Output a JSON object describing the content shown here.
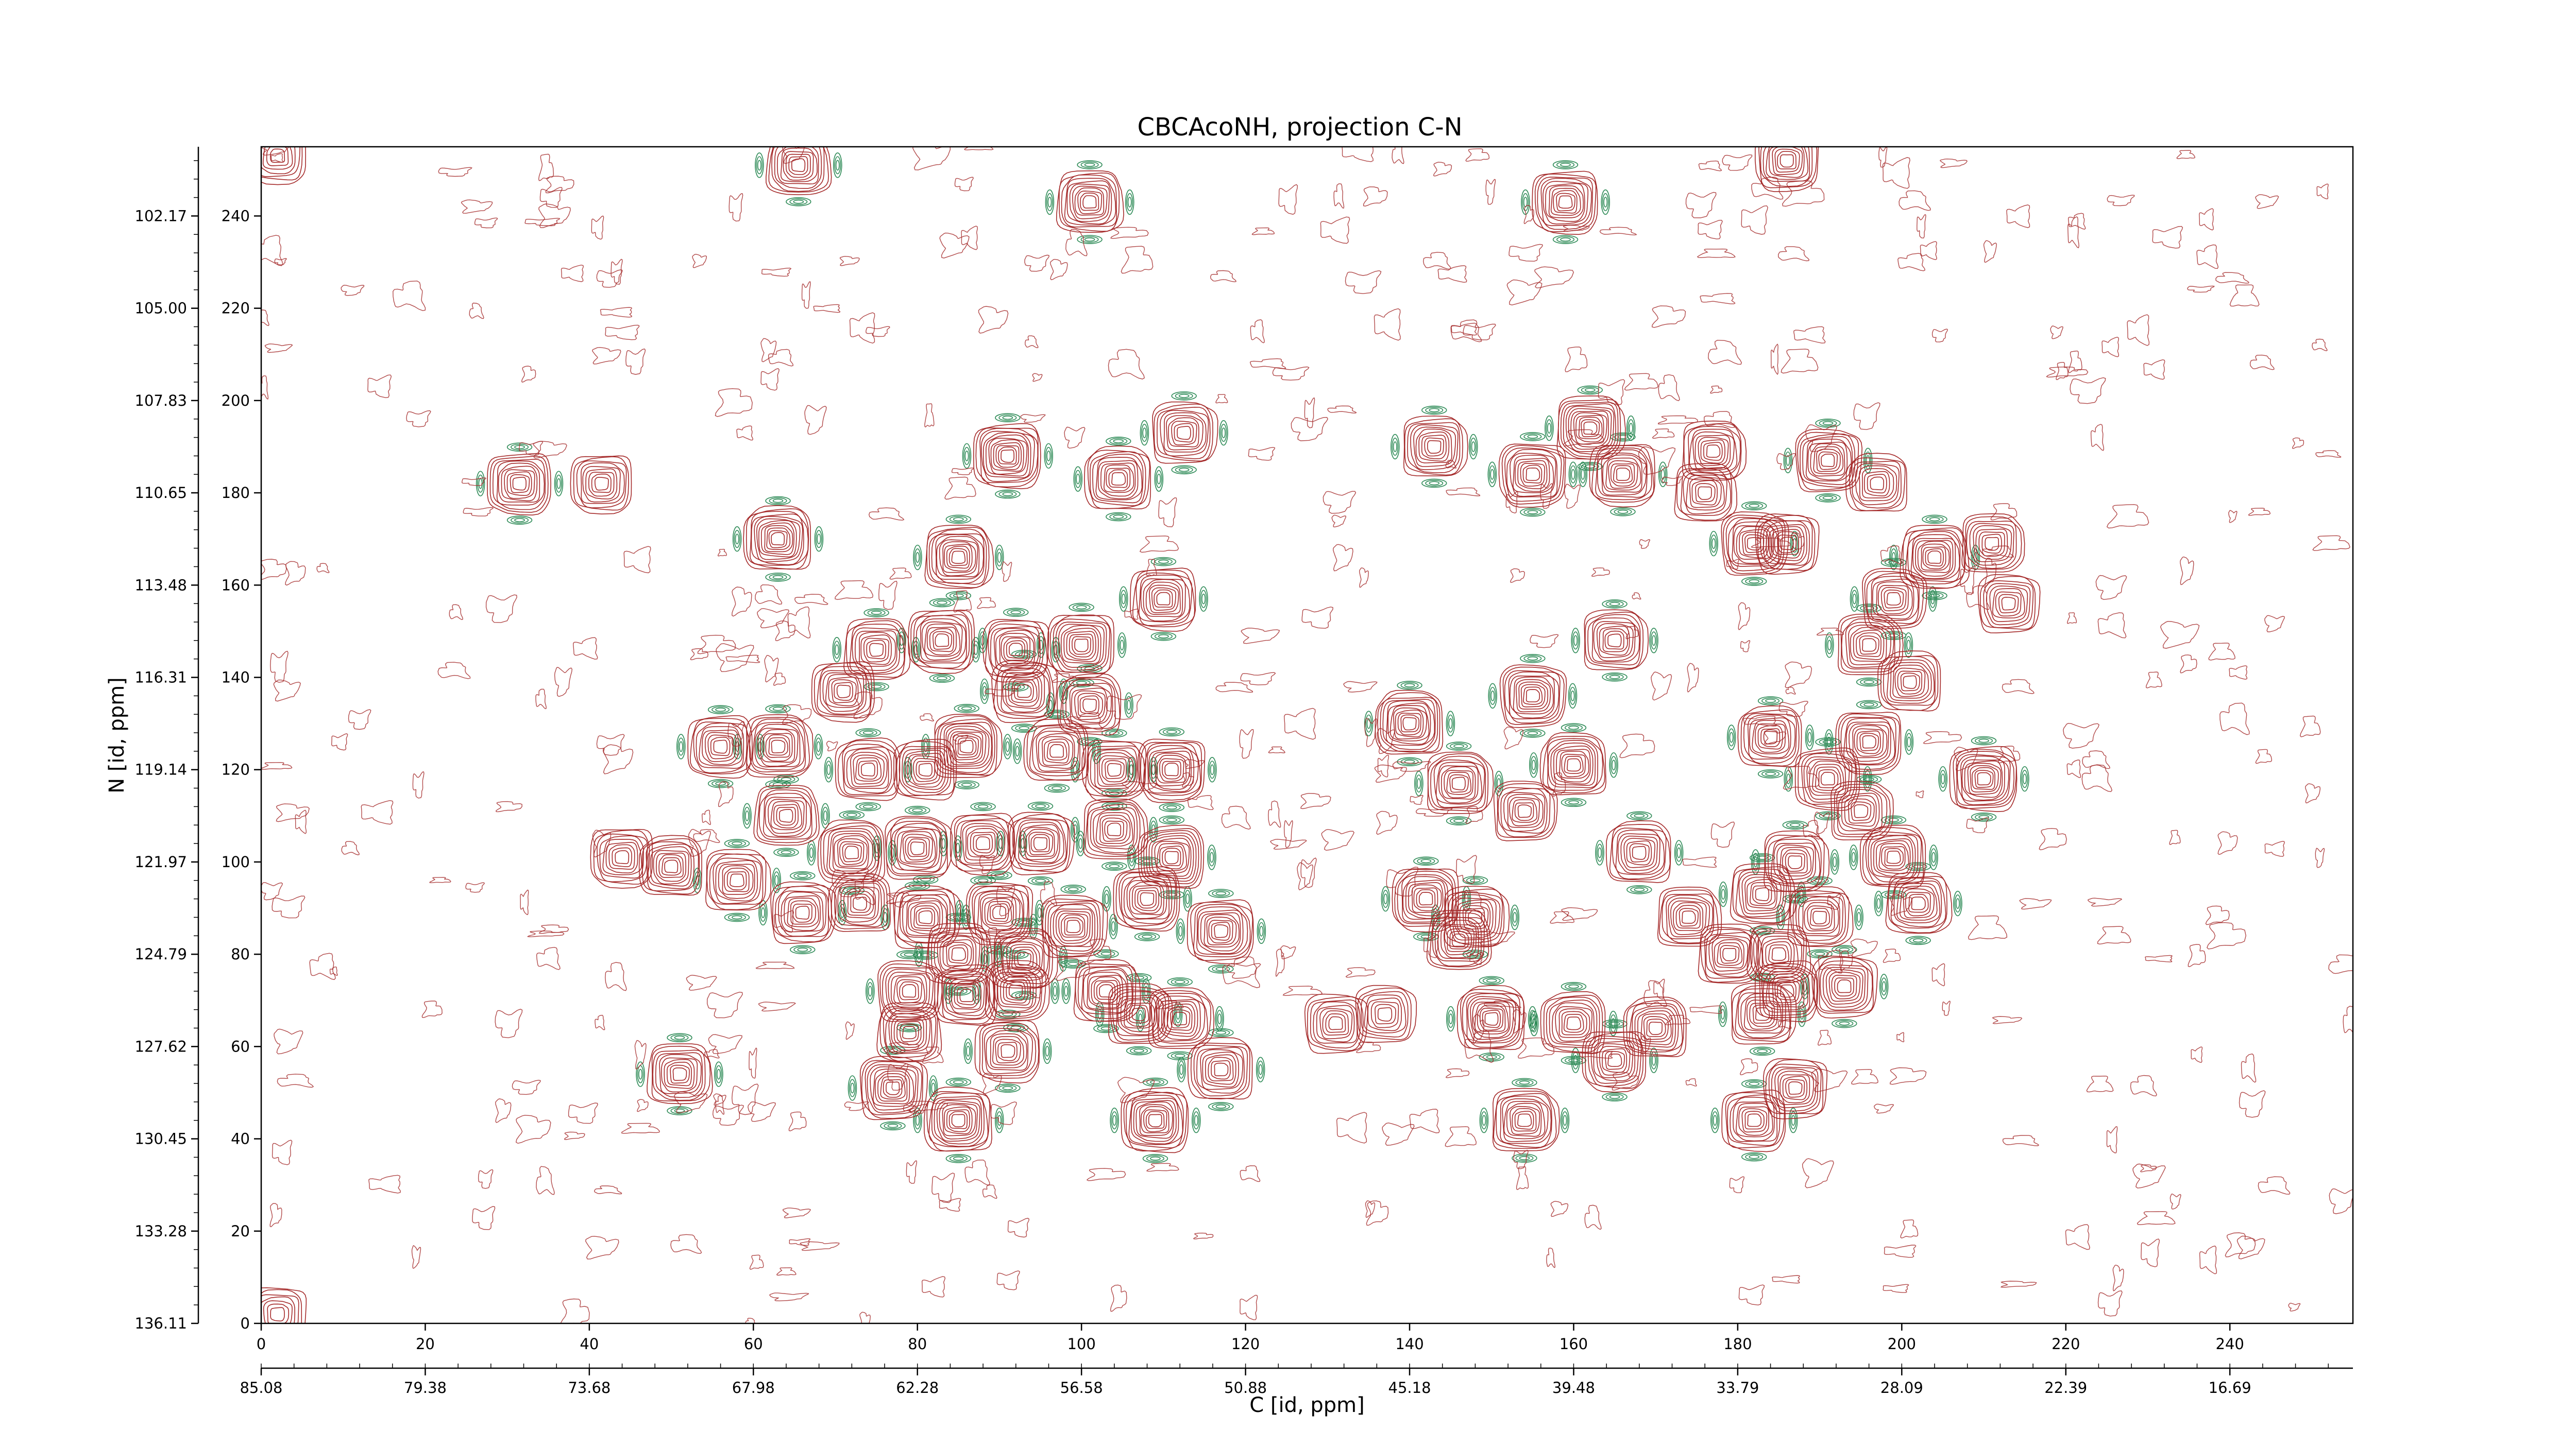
{
  "chart_data": {
    "type": "contour",
    "title": "CBCAcoNH, projection C-N",
    "xlabel": "C [id, ppm]",
    "ylabel": "N [id, ppm]",
    "xlim": [
      0,
      255
    ],
    "ylim": [
      0,
      255
    ],
    "x_ticks": [
      0,
      20,
      40,
      60,
      80,
      100,
      120,
      140,
      160,
      180,
      200,
      220,
      240
    ],
    "y_ticks": [
      0,
      20,
      40,
      60,
      80,
      100,
      120,
      140,
      160,
      180,
      200,
      220,
      240
    ],
    "x_ppm_ticks": [
      "85.08",
      "79.38",
      "73.68",
      "67.98",
      "62.28",
      "56.58",
      "50.88",
      "45.18",
      "39.48",
      "33.79",
      "28.09",
      "22.39",
      "16.69"
    ],
    "y_ppm_ticks": [
      "136.11",
      "133.28",
      "130.45",
      "127.62",
      "124.79",
      "121.97",
      "119.14",
      "116.31",
      "113.48",
      "110.65",
      "107.83",
      "105.00",
      "102.17"
    ],
    "positive_color": "#a52a2a",
    "negative_color": "#2e8b57",
    "peaks": [
      {
        "x": 65.5,
        "y": 251,
        "i": 0.75
      },
      {
        "x": 101,
        "y": 243,
        "i": 0.85
      },
      {
        "x": 159,
        "y": 243,
        "i": 0.85
      },
      {
        "x": 186,
        "y": 252,
        "i": 0.7
      },
      {
        "x": 31.5,
        "y": 182,
        "i": 0.75
      },
      {
        "x": 41.5,
        "y": 182,
        "i": 0.6
      },
      {
        "x": 63,
        "y": 170,
        "i": 0.95
      },
      {
        "x": 91,
        "y": 188,
        "i": 0.95
      },
      {
        "x": 104.5,
        "y": 183,
        "i": 0.9
      },
      {
        "x": 112.5,
        "y": 193,
        "i": 0.8
      },
      {
        "x": 85,
        "y": 166,
        "i": 0.95
      },
      {
        "x": 110,
        "y": 157,
        "i": 0.85
      },
      {
        "x": 143,
        "y": 190,
        "i": 0.75
      },
      {
        "x": 155,
        "y": 184,
        "i": 0.9
      },
      {
        "x": 162,
        "y": 194,
        "i": 0.95
      },
      {
        "x": 166,
        "y": 184,
        "i": 0.85
      },
      {
        "x": 177,
        "y": 189,
        "i": 0.7
      },
      {
        "x": 176,
        "y": 180,
        "i": 0.6
      },
      {
        "x": 191,
        "y": 187,
        "i": 0.85
      },
      {
        "x": 197,
        "y": 182,
        "i": 0.6
      },
      {
        "x": 182,
        "y": 169,
        "i": 0.9
      },
      {
        "x": 186,
        "y": 169,
        "i": 0.7
      },
      {
        "x": 204,
        "y": 166,
        "i": 0.95
      },
      {
        "x": 211,
        "y": 169,
        "i": 0.65
      },
      {
        "x": 199,
        "y": 157,
        "i": 0.75
      },
      {
        "x": 196,
        "y": 147,
        "i": 0.8
      },
      {
        "x": 201,
        "y": 139,
        "i": 0.7
      },
      {
        "x": 213,
        "y": 156,
        "i": 0.6
      },
      {
        "x": 165,
        "y": 148,
        "i": 0.75
      },
      {
        "x": 75,
        "y": 146,
        "i": 0.8
      },
      {
        "x": 83,
        "y": 148,
        "i": 0.9
      },
      {
        "x": 92,
        "y": 146,
        "i": 0.85
      },
      {
        "x": 100,
        "y": 147,
        "i": 0.9
      },
      {
        "x": 71,
        "y": 137,
        "i": 0.7
      },
      {
        "x": 93,
        "y": 137,
        "i": 0.8
      },
      {
        "x": 101,
        "y": 134,
        "i": 0.75
      },
      {
        "x": 63,
        "y": 125,
        "i": 0.9
      },
      {
        "x": 56,
        "y": 125,
        "i": 0.8
      },
      {
        "x": 86,
        "y": 125,
        "i": 0.95
      },
      {
        "x": 97,
        "y": 124,
        "i": 0.8
      },
      {
        "x": 111,
        "y": 120,
        "i": 0.9
      },
      {
        "x": 104,
        "y": 120,
        "i": 0.75
      },
      {
        "x": 74,
        "y": 120,
        "i": 0.8
      },
      {
        "x": 81,
        "y": 120,
        "i": 0.7
      },
      {
        "x": 64,
        "y": 110,
        "i": 0.75
      },
      {
        "x": 72,
        "y": 102,
        "i": 0.9
      },
      {
        "x": 80,
        "y": 103,
        "i": 0.9
      },
      {
        "x": 88,
        "y": 104,
        "i": 0.8
      },
      {
        "x": 95,
        "y": 104,
        "i": 0.85
      },
      {
        "x": 104,
        "y": 107,
        "i": 0.75
      },
      {
        "x": 111,
        "y": 101,
        "i": 0.85
      },
      {
        "x": 44,
        "y": 101,
        "i": 0.65
      },
      {
        "x": 50,
        "y": 99,
        "i": 0.7
      },
      {
        "x": 58,
        "y": 96,
        "i": 0.8
      },
      {
        "x": 66,
        "y": 89,
        "i": 0.8
      },
      {
        "x": 73,
        "y": 91,
        "i": 0.65
      },
      {
        "x": 81,
        "y": 88,
        "i": 0.9
      },
      {
        "x": 90,
        "y": 89,
        "i": 0.85
      },
      {
        "x": 99,
        "y": 86,
        "i": 0.85
      },
      {
        "x": 108,
        "y": 92,
        "i": 0.9
      },
      {
        "x": 117,
        "y": 85,
        "i": 0.9
      },
      {
        "x": 85,
        "y": 80,
        "i": 0.8
      },
      {
        "x": 93,
        "y": 79,
        "i": 0.75
      },
      {
        "x": 79,
        "y": 72,
        "i": 0.75
      },
      {
        "x": 86,
        "y": 71,
        "i": 0.7
      },
      {
        "x": 92,
        "y": 72,
        "i": 0.75
      },
      {
        "x": 103,
        "y": 72,
        "i": 0.85
      },
      {
        "x": 112,
        "y": 66,
        "i": 0.8
      },
      {
        "x": 107,
        "y": 67,
        "i": 0.75
      },
      {
        "x": 79,
        "y": 63,
        "i": 0.7
      },
      {
        "x": 91,
        "y": 59,
        "i": 0.8
      },
      {
        "x": 117,
        "y": 55,
        "i": 0.8
      },
      {
        "x": 77,
        "y": 51,
        "i": 0.9
      },
      {
        "x": 51,
        "y": 54,
        "i": 0.75
      },
      {
        "x": 85,
        "y": 44,
        "i": 0.95
      },
      {
        "x": 109,
        "y": 44,
        "i": 0.95
      },
      {
        "x": 131,
        "y": 65,
        "i": 0.65
      },
      {
        "x": 137,
        "y": 67,
        "i": 0.55
      },
      {
        "x": 140,
        "y": 130,
        "i": 0.95
      },
      {
        "x": 155,
        "y": 136,
        "i": 0.85
      },
      {
        "x": 146,
        "y": 117,
        "i": 0.85
      },
      {
        "x": 160,
        "y": 121,
        "i": 0.85
      },
      {
        "x": 154,
        "y": 111,
        "i": 0.7
      },
      {
        "x": 142,
        "y": 92,
        "i": 0.9
      },
      {
        "x": 148,
        "y": 88,
        "i": 0.8
      },
      {
        "x": 146,
        "y": 83,
        "i": 0.7
      },
      {
        "x": 168,
        "y": 102,
        "i": 0.8
      },
      {
        "x": 150,
        "y": 66,
        "i": 0.95
      },
      {
        "x": 160,
        "y": 65,
        "i": 0.8
      },
      {
        "x": 165,
        "y": 57,
        "i": 0.75
      },
      {
        "x": 170,
        "y": 64,
        "i": 0.7
      },
      {
        "x": 154,
        "y": 44,
        "i": 0.9
      },
      {
        "x": 174,
        "y": 88,
        "i": 0.7
      },
      {
        "x": 179,
        "y": 80,
        "i": 0.7
      },
      {
        "x": 183,
        "y": 93,
        "i": 0.75
      },
      {
        "x": 187,
        "y": 100,
        "i": 0.8
      },
      {
        "x": 190,
        "y": 88,
        "i": 0.75
      },
      {
        "x": 185,
        "y": 80,
        "i": 0.65
      },
      {
        "x": 184,
        "y": 127,
        "i": 0.75
      },
      {
        "x": 191,
        "y": 118,
        "i": 0.8
      },
      {
        "x": 196,
        "y": 126,
        "i": 0.85
      },
      {
        "x": 195,
        "y": 111,
        "i": 0.65
      },
      {
        "x": 199,
        "y": 101,
        "i": 0.85
      },
      {
        "x": 210,
        "y": 118,
        "i": 0.95
      },
      {
        "x": 202,
        "y": 91,
        "i": 0.8
      },
      {
        "x": 186,
        "y": 72,
        "i": 0.7
      },
      {
        "x": 193,
        "y": 73,
        "i": 0.8
      },
      {
        "x": 183,
        "y": 67,
        "i": 0.8
      },
      {
        "x": 187,
        "y": 51,
        "i": 0.7
      },
      {
        "x": 182,
        "y": 44,
        "i": 0.75
      },
      {
        "x": 2,
        "y": 253,
        "i": 0.4
      },
      {
        "x": 2,
        "y": 2,
        "i": 0.35
      }
    ]
  }
}
